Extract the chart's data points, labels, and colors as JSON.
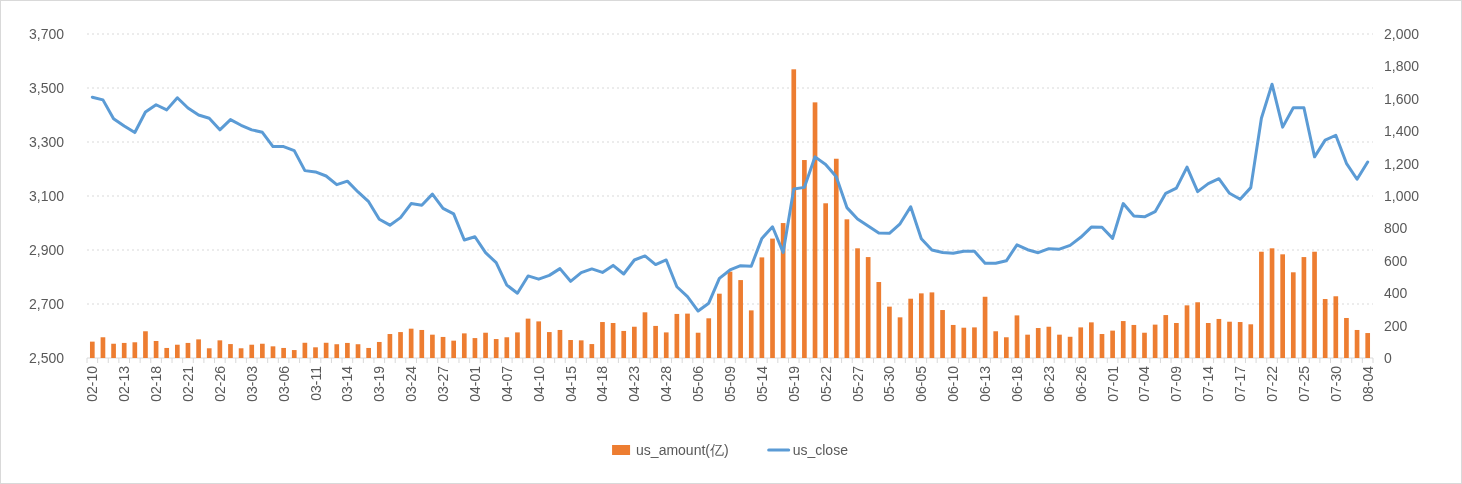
{
  "chart_data": {
    "type": "bar",
    "categories": [
      "02-10",
      null,
      null,
      "02-13",
      null,
      null,
      "02-18",
      null,
      null,
      "02-21",
      null,
      null,
      "02-26",
      null,
      null,
      "03-03",
      null,
      null,
      "03-06",
      null,
      null,
      "03-11",
      null,
      null,
      "03-14",
      null,
      null,
      "03-19",
      null,
      null,
      "03-24",
      null,
      null,
      "03-27",
      null,
      null,
      "04-01",
      null,
      null,
      "04-07",
      null,
      null,
      "04-10",
      null,
      null,
      "04-15",
      null,
      null,
      "04-18",
      null,
      null,
      "04-23",
      null,
      null,
      "04-28",
      null,
      null,
      "05-06",
      null,
      null,
      "05-09",
      null,
      null,
      "05-14",
      null,
      null,
      "05-19",
      null,
      null,
      "05-22",
      null,
      null,
      "05-27",
      null,
      null,
      "05-30",
      null,
      null,
      "06-05",
      null,
      null,
      "06-10",
      null,
      null,
      "06-13",
      null,
      null,
      "06-18",
      null,
      null,
      "06-23",
      null,
      null,
      "06-26",
      null,
      null,
      "07-01",
      null,
      null,
      "07-04",
      null,
      null,
      "07-09",
      null,
      null,
      "07-14",
      null,
      null,
      "07-17",
      null,
      null,
      "07-22",
      null,
      null,
      "07-25",
      null,
      null,
      "07-30",
      null,
      null,
      "08-04"
    ],
    "series": [
      {
        "name": "us_amount(亿)",
        "axis": "y2",
        "color": "#ed7d31",
        "values": [
          101,
          128,
          88,
          93,
          97,
          165,
          105,
          62,
          82,
          93,
          115,
          60,
          109,
          86,
          60,
          82,
          88,
          72,
          62,
          49,
          94,
          66,
          94,
          85,
          93,
          85,
          62,
          99,
          148,
          160,
          181,
          173,
          144,
          130,
          107,
          152,
          123,
          156,
          117,
          128,
          158,
          243,
          226,
          160,
          173,
          111,
          109,
          86,
          222,
          216,
          167,
          193,
          282,
          198,
          158,
          272,
          274,
          156,
          245,
          397,
          533,
          481,
          294,
          621,
          737,
          833,
          1782,
          1222,
          1578,
          955,
          1230,
          856,
          677,
          623,
          469,
          317,
          251,
          366,
          399,
          405,
          296,
          204,
          187,
          189,
          378,
          165,
          128,
          263,
          144,
          185,
          193,
          144,
          131,
          189,
          220,
          148,
          169,
          228,
          204,
          156,
          206,
          265,
          216,
          325,
          344,
          216,
          241,
          224,
          222,
          208,
          656,
          677,
          640,
          529,
          623,
          656,
          364,
          381,
          247,
          173,
          154
        ]
      },
      {
        "name": "us_close",
        "type": "line",
        "color": "#5b9bd5",
        "values": [
          3466,
          3456,
          3386,
          3359,
          3335,
          3411,
          3438,
          3419,
          3464,
          3426,
          3400,
          3388,
          3345,
          3383,
          3362,
          3345,
          3336,
          3283,
          3283,
          3268,
          3194,
          3189,
          3174,
          3142,
          3155,
          3115,
          3079,
          3014,
          2992,
          3020,
          3072,
          3066,
          3107,
          3054,
          3034,
          2937,
          2949,
          2890,
          2853,
          2770,
          2740,
          2804,
          2792,
          2806,
          2831,
          2784,
          2816,
          2830,
          2817,
          2843,
          2811,
          2863,
          2878,
          2846,
          2863,
          2764,
          2727,
          2674,
          2703,
          2795,
          2826,
          2842,
          2840,
          2943,
          2986,
          2891,
          3126,
          3132,
          3245,
          3217,
          3171,
          3057,
          3015,
          2989,
          2963,
          2962,
          2997,
          3060,
          2942,
          2900,
          2891,
          2888,
          2895,
          2895,
          2851,
          2851,
          2860,
          2919,
          2901,
          2890,
          2905,
          2903,
          2917,
          2947,
          2985,
          2984,
          2943,
          3072,
          3026,
          3023,
          3042,
          3110,
          3129,
          3207,
          3116,
          3146,
          3164,
          3110,
          3088,
          3131,
          3388,
          3514,
          3355,
          3427,
          3427,
          3245,
          3307,
          3325,
          3221,
          3162,
          3226
        ]
      }
    ],
    "ylim": [
      2500,
      3700
    ],
    "yticks": [
      {
        "value": 2500,
        "label": "2,500"
      },
      {
        "value": 2700,
        "label": "2,700"
      },
      {
        "value": 2900,
        "label": "2,900"
      },
      {
        "value": 3100,
        "label": "3,100"
      },
      {
        "value": 3300,
        "label": "3,300"
      },
      {
        "value": 3500,
        "label": "3,500"
      },
      {
        "value": 3700,
        "label": "3,700"
      }
    ],
    "y2lim": [
      0,
      2000
    ],
    "y2ticks": [
      0,
      200,
      400,
      600,
      800,
      {
        "value": 1000,
        "label": "1,000"
      },
      {
        "value": 1200,
        "label": "1,200"
      },
      {
        "value": 1400,
        "label": "1,400"
      },
      {
        "value": 1600,
        "label": "1,600"
      },
      {
        "value": 1800,
        "label": "1,800"
      },
      {
        "value": 2000,
        "label": "2,000"
      }
    ],
    "grid": "y",
    "legend": "bottom"
  }
}
